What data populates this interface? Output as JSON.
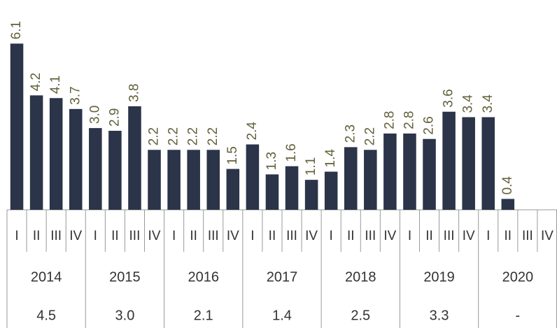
{
  "chart_data": {
    "type": "bar",
    "categories": [
      "I",
      "II",
      "III",
      "IV",
      "I",
      "II",
      "III",
      "IV",
      "I",
      "II",
      "III",
      "IV",
      "I",
      "II",
      "III",
      "IV",
      "I",
      "II",
      "III",
      "IV",
      "I",
      "II",
      "III",
      "IV",
      "I",
      "II",
      "III",
      "IV"
    ],
    "values": [
      6.1,
      4.2,
      4.1,
      3.7,
      3.0,
      2.9,
      3.8,
      2.2,
      2.2,
      2.2,
      2.2,
      1.5,
      2.4,
      1.3,
      1.6,
      1.1,
      1.4,
      2.3,
      2.2,
      2.8,
      2.8,
      2.6,
      3.6,
      3.4,
      3.4,
      0.4,
      null,
      null
    ],
    "value_labels": [
      "6.1",
      "4.2",
      "4.1",
      "3.7",
      "3.0",
      "2.9",
      "3.8",
      "2.2",
      "2.2",
      "2.2",
      "2.2",
      "1.5",
      "2.4",
      "1.3",
      "1.6",
      "1.1",
      "1.4",
      "2.3",
      "2.2",
      "2.8",
      "2.8",
      "2.6",
      "3.6",
      "3.4",
      "3.4",
      "0.4",
      null,
      null
    ],
    "years": [
      "2014",
      "2015",
      "2016",
      "2017",
      "2018",
      "2019",
      "2020"
    ],
    "annual": [
      "4.5",
      "3.0",
      "2.1",
      "1.4",
      "2.5",
      "3.3",
      "-"
    ],
    "color": "#2b3448",
    "ylim": [
      0,
      7.7
    ]
  }
}
